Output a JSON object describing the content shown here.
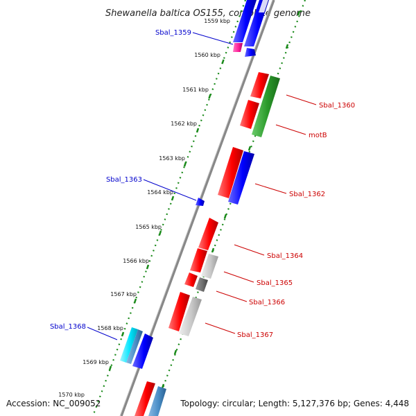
{
  "title": "Shewanella baltica OS155, complete genome",
  "footer": {
    "accession": "Accession: NC_009052",
    "topology": "Topology: circular; Length: 5,127,376 bp; Genes: 4,448"
  },
  "ticks": [
    "1559 kbp",
    "1560 kbp",
    "1561 kbp",
    "1562 kbp",
    "1563 kbp",
    "1564 kbp",
    "1565 kbp",
    "1566 kbp",
    "1567 kbp",
    "1568 kbp",
    "1569 kbp",
    "1570 kbp"
  ],
  "gene_labels": {
    "sbal_1359": "Sbal_1359",
    "sbal_1360": "Sbal_1360",
    "motb": "motB",
    "sbal_1362": "Sbal_1362",
    "sbal_1363": "Sbal_1363",
    "sbal_1364": "Sbal_1364",
    "sbal_1365": "Sbal_1365",
    "sbal_1366": "Sbal_1366",
    "sbal_1367": "Sbal_1367",
    "sbal_1368": "Sbal_1368"
  },
  "colors": {
    "forward_label": "#0000cc",
    "reverse_label": "#cc0000",
    "backbone": "#808080",
    "tick_dots": "#1a8a1a",
    "red_feature": "#ff0000",
    "blue_feature": "#0000ff",
    "green_feature": "#2a9a2a",
    "gray_feature": "#c8c8c8",
    "darkgray_feature": "#707070",
    "cyan_feature": "#00e5ff",
    "steelblue_feature": "#4a8fc8",
    "magenta_feature": "#ff2299"
  }
}
